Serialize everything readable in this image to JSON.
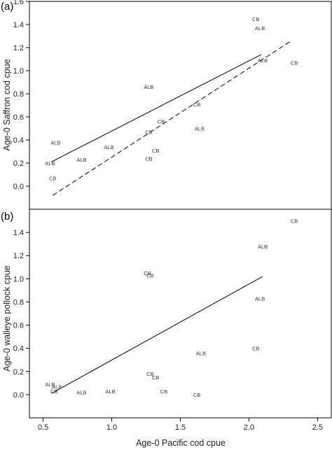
{
  "chart_data": [
    {
      "type": "scatter",
      "panel_label": "(a)",
      "ylabel": "Age-0 Saffron cod cpue",
      "xlim": [
        0.4,
        2.6
      ],
      "ylim": [
        -0.2,
        1.6
      ],
      "y_ticks": [
        "0.0",
        "0.2",
        "0.4",
        "0.6",
        "0.8",
        "1.0",
        "1.2",
        "1.4",
        "1.6"
      ],
      "points": [
        {
          "label": "CB",
          "x": 2.05,
          "y": 1.45
        },
        {
          "label": "ALB",
          "x": 2.08,
          "y": 1.37
        },
        {
          "label": "ALB",
          "x": 2.1,
          "y": 1.09
        },
        {
          "label": "CB",
          "x": 2.33,
          "y": 1.07
        },
        {
          "label": "ALB",
          "x": 1.27,
          "y": 0.86
        },
        {
          "label": "CB",
          "x": 1.62,
          "y": 0.71
        },
        {
          "label": "CB",
          "x": 1.36,
          "y": 0.56
        },
        {
          "label": "CB",
          "x": 1.27,
          "y": 0.47
        },
        {
          "label": "ALB",
          "x": 1.64,
          "y": 0.5
        },
        {
          "label": "ALB",
          "x": 0.59,
          "y": 0.38
        },
        {
          "label": "ALB",
          "x": 0.98,
          "y": 0.34
        },
        {
          "label": "CB",
          "x": 1.32,
          "y": 0.31
        },
        {
          "label": "CB",
          "x": 1.27,
          "y": 0.24
        },
        {
          "label": "ALB",
          "x": 0.78,
          "y": 0.23
        },
        {
          "label": "ALB",
          "x": 0.55,
          "y": 0.2
        },
        {
          "label": "CB",
          "x": 0.57,
          "y": 0.07
        }
      ],
      "lines": [
        {
          "style": "solid",
          "x": [
            0.56,
            2.09
          ],
          "y": [
            0.21,
            1.14
          ]
        },
        {
          "style": "dashed",
          "x": [
            0.57,
            2.31
          ],
          "y": [
            -0.08,
            1.26
          ]
        }
      ]
    },
    {
      "type": "scatter",
      "panel_label": "(b)",
      "xlabel": "Age-0 Pacific cod cpue",
      "ylabel": "Age-0 walleye pollock cpue",
      "xlim": [
        0.4,
        2.6
      ],
      "ylim": [
        -0.2,
        1.6
      ],
      "x_ticks": [
        "0.5",
        "1.0",
        "1.5",
        "2.0",
        "2.5"
      ],
      "y_ticks": [
        "0.0",
        "0.2",
        "0.4",
        "0.6",
        "0.8",
        "1.0",
        "1.2",
        "1.4"
      ],
      "points": [
        {
          "label": "CB",
          "x": 2.33,
          "y": 1.5
        },
        {
          "label": "ALB",
          "x": 2.1,
          "y": 1.28
        },
        {
          "label": "CB",
          "x": 1.26,
          "y": 1.05
        },
        {
          "label": "CB",
          "x": 1.28,
          "y": 1.03
        },
        {
          "label": "ALB",
          "x": 2.08,
          "y": 0.83
        },
        {
          "label": "CB",
          "x": 2.05,
          "y": 0.4
        },
        {
          "label": "ALB",
          "x": 1.65,
          "y": 0.36
        },
        {
          "label": "CB",
          "x": 1.28,
          "y": 0.18
        },
        {
          "label": "CB",
          "x": 1.32,
          "y": 0.15
        },
        {
          "label": "ALB",
          "x": 0.55,
          "y": 0.09
        },
        {
          "label": "ALB",
          "x": 0.6,
          "y": 0.07
        },
        {
          "label": "CB",
          "x": 0.58,
          "y": 0.03
        },
        {
          "label": "ALB",
          "x": 0.78,
          "y": 0.02
        },
        {
          "label": "ALB",
          "x": 0.99,
          "y": 0.03
        },
        {
          "label": "CB",
          "x": 1.38,
          "y": 0.03
        },
        {
          "label": "CB",
          "x": 1.62,
          "y": 0.0
        }
      ],
      "lines": [
        {
          "style": "solid",
          "x": [
            0.56,
            2.1
          ],
          "y": [
            0.01,
            1.02
          ]
        }
      ]
    }
  ]
}
